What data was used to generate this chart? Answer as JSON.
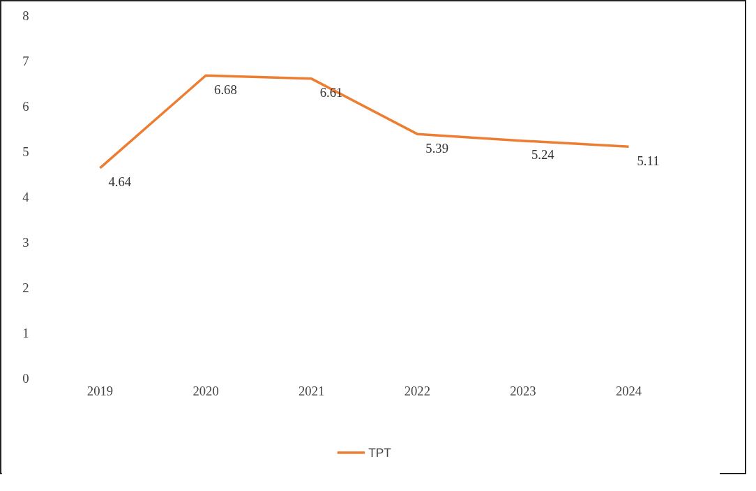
{
  "chart_data": {
    "type": "line",
    "categories": [
      "2019",
      "2020",
      "2021",
      "2022",
      "2023",
      "2024"
    ],
    "series": [
      {
        "name": "TPT",
        "color": "#ed7d31",
        "values": [
          4.64,
          6.68,
          6.61,
          5.39,
          5.24,
          5.11
        ]
      }
    ],
    "ylim": [
      0,
      8
    ],
    "yticks": [
      0,
      1,
      2,
      3,
      4,
      5,
      6,
      7,
      8
    ],
    "grid": false,
    "legend": "bottom",
    "data_labels": true,
    "marker": "none",
    "line_style": "solid"
  }
}
